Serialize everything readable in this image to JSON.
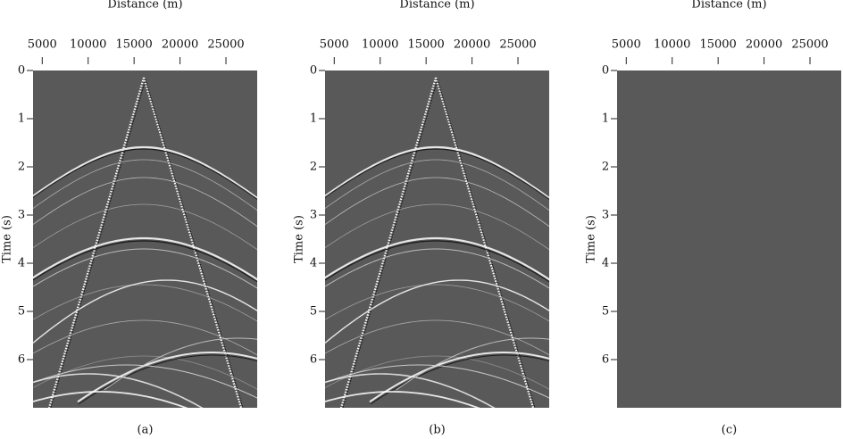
{
  "chart_data": [
    {
      "type": "image",
      "xlabel": "Distance (m)",
      "ylabel": "Time (s)",
      "caption": "(a)",
      "xlim": [
        4000,
        28400
      ],
      "xticks": [
        5000,
        10000,
        15000,
        20000,
        25000
      ],
      "ylim": [
        0,
        7
      ],
      "yticks": [
        0,
        1,
        2,
        3,
        4,
        5,
        6
      ],
      "color": "#595959"
    },
    {
      "type": "image",
      "xlabel": "Distance (m)",
      "ylabel": "Time (s)",
      "caption": "(b)",
      "xlim": [
        4000,
        28400
      ],
      "xticks": [
        5000,
        10000,
        15000,
        20000,
        25000
      ],
      "ylim": [
        0,
        7
      ],
      "yticks": [
        0,
        1,
        2,
        3,
        4,
        5,
        6
      ],
      "color": "#595959"
    },
    {
      "type": "image",
      "xlabel": "Distance (m)",
      "ylabel": "Time (s)",
      "caption": "(c)",
      "xlim": [
        4000,
        28400
      ],
      "xticks": [
        5000,
        10000,
        15000,
        20000,
        25000
      ],
      "ylim": [
        0,
        7
      ],
      "yticks": [
        0,
        1,
        2,
        3,
        4,
        5,
        6
      ],
      "color": "#595959"
    }
  ]
}
